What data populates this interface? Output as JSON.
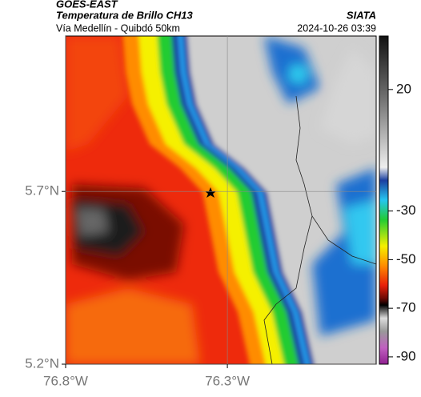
{
  "header": {
    "title": "GOES-EAST",
    "subtitle": "Temperatura de Brillo CH13",
    "source": "SIATA",
    "route": "Vía Medellín - Quibdó 50km",
    "timestamp": "2024-10-26 03:39"
  },
  "map": {
    "latlim": [
      5.2,
      6.15
    ],
    "lonlim": [
      -76.8,
      -75.84
    ],
    "latticks": [
      {
        "value": 5.7,
        "label": "5.7°N"
      },
      {
        "value": 5.2,
        "label": "5.2°N"
      }
    ],
    "lonticks": [
      {
        "value": -76.8,
        "label": "76.8°W"
      },
      {
        "value": -76.3,
        "label": "76.3°W"
      }
    ],
    "grid": true
  },
  "colorbar": {
    "lim": [
      -93,
      42
    ],
    "ticks": [
      20,
      -30,
      -50,
      -70,
      -90
    ]
  }
}
